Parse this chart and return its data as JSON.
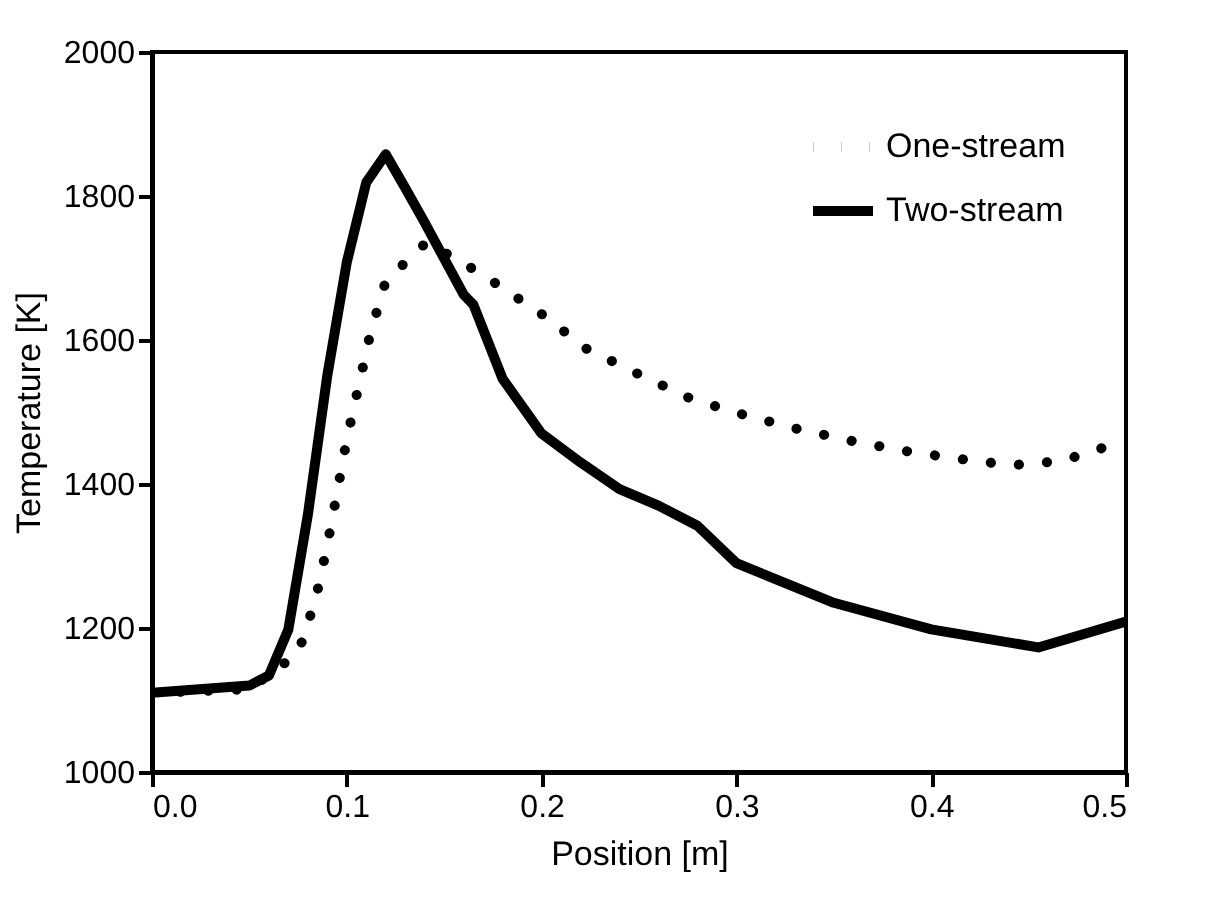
{
  "chart_data": {
    "type": "line",
    "xlabel": "Position [m]",
    "ylabel": "Temperature [K]",
    "xlim": [
      0,
      0.5
    ],
    "xticks": [
      {
        "value": 0,
        "label": "0.0"
      },
      0.1,
      0.2,
      0.3,
      0.4,
      0.5
    ],
    "ylim": [
      1000,
      2000
    ],
    "yticks": [
      1000,
      1200,
      1400,
      1600,
      1800,
      2000
    ],
    "grid": false,
    "legend": "top right",
    "series": [
      {
        "name": "One-stream",
        "color": "#000000",
        "line_style": "dotted",
        "x": [
          0,
          0.05,
          0.075,
          0.084,
          0.09,
          0.095,
          0.1,
          0.106,
          0.112,
          0.12,
          0.141,
          0.169,
          0.2,
          0.223,
          0.251,
          0.277,
          0.304,
          0.332,
          0.359,
          0.386,
          0.414,
          0.441,
          0.467,
          0.496
        ],
        "values": [
          1110,
          1115,
          1165,
          1240,
          1315,
          1388,
          1462,
          1535,
          1608,
          1682,
          1736,
          1692,
          1636,
          1588,
          1551,
          1518,
          1496,
          1476,
          1460,
          1446,
          1435,
          1426,
          1432,
          1457
        ]
      },
      {
        "name": "Two-stream",
        "color": "#000000",
        "line_style": "solid",
        "x": [
          0,
          0.05,
          0.06,
          0.07,
          0.08,
          0.09,
          0.1,
          0.11,
          0.12,
          0.13,
          0.14,
          0.15,
          0.16,
          0.165,
          0.18,
          0.2,
          0.22,
          0.24,
          0.26,
          0.28,
          0.3,
          0.35,
          0.4,
          0.455,
          0.5
        ],
        "values": [
          1110,
          1120,
          1134,
          1198,
          1357,
          1551,
          1708,
          1819,
          1858,
          1811,
          1763,
          1713,
          1663,
          1649,
          1546,
          1470,
          1430,
          1393,
          1370,
          1342,
          1290,
          1235,
          1198,
          1173,
          1209
        ]
      }
    ]
  }
}
